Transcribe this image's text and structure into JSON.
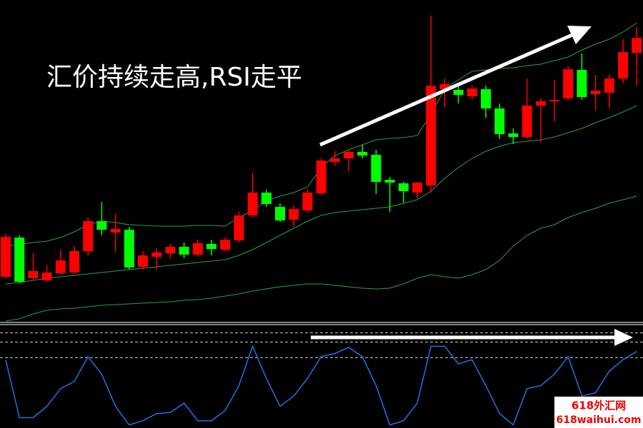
{
  "chart_data": [
    {
      "type": "candlestick",
      "annotation": "汇价持续走高,RSI走平",
      "ylim": [
        10,
        460
      ],
      "up_color": "#ff0000",
      "down_color": "#00ff00",
      "open": [
        72,
        127,
        70,
        67,
        77,
        78,
        108,
        150,
        134,
        138,
        86,
        100,
        105,
        114,
        103,
        118,
        110,
        123,
        158,
        190,
        170,
        152,
        165,
        189,
        233,
        238,
        247,
        243,
        208,
        203,
        190,
        200,
        335,
        334,
        325,
        335,
        308,
        273,
        268,
        312,
        318,
        322,
        362,
        328,
        330,
        350,
        386
      ],
      "close": [
        128,
        65,
        80,
        78,
        95,
        108,
        150,
        138,
        139,
        85,
        102,
        106,
        114,
        103,
        119,
        111,
        124,
        158,
        190,
        174,
        151,
        167,
        190,
        235,
        238,
        247,
        242,
        205,
        204,
        192,
        204,
        340,
        342,
        327,
        336,
        308,
        272,
        268,
        312,
        318,
        320,
        363,
        324,
        333,
        350,
        387,
        407
      ],
      "high": [
        132,
        130,
        105,
        88,
        110,
        115,
        155,
        177,
        160,
        142,
        108,
        112,
        118,
        120,
        124,
        124,
        127,
        164,
        218,
        194,
        175,
        172,
        195,
        238,
        248,
        250,
        257,
        250,
        212,
        205,
        205,
        438,
        350,
        340,
        340,
        340,
        315,
        280,
        350,
        322,
        348,
        367,
        385,
        355,
        355,
        405,
        422
      ],
      "low": [
        70,
        63,
        68,
        65,
        75,
        76,
        102,
        130,
        107,
        82,
        82,
        82,
        98,
        98,
        100,
        102,
        107,
        120,
        155,
        170,
        149,
        142,
        162,
        187,
        228,
        220,
        238,
        188,
        163,
        176,
        182,
        190,
        310,
        315,
        320,
        295,
        265,
        258,
        265,
        260,
        290,
        320,
        320,
        305,
        308,
        343,
        340
      ],
      "band_color": "#2f9e4a",
      "bands": [
        {
          "values": [
            115,
            117,
            120,
            122,
            127,
            135,
            145,
            150,
            148,
            145,
            144,
            143,
            143,
            143,
            144,
            144,
            143,
            155,
            165,
            178,
            185,
            190,
            198,
            225,
            242,
            250,
            257,
            264,
            266,
            267,
            270,
            300,
            335,
            348,
            360,
            362,
            364,
            365,
            368,
            370,
            375,
            380,
            390,
            398,
            405,
            415,
            428
          ]
        },
        {
          "values": [
            62,
            64,
            67,
            70,
            72,
            74,
            76,
            78,
            80,
            82,
            84,
            86,
            88,
            90,
            92,
            94,
            96,
            102,
            110,
            120,
            130,
            140,
            150,
            158,
            162,
            164,
            166,
            168,
            170,
            175,
            180,
            192,
            210,
            225,
            238,
            248,
            255,
            260,
            262,
            264,
            268,
            274,
            280,
            288,
            295,
            303,
            312
          ]
        },
        {
          "values": [
            10,
            13,
            20,
            25,
            27,
            28,
            30,
            32,
            33,
            34,
            35,
            36,
            37,
            39,
            40,
            42,
            45,
            48,
            52,
            55,
            58,
            60,
            62,
            62,
            60,
            58,
            56,
            55,
            56,
            62,
            70,
            75,
            72,
            70,
            75,
            82,
            95,
            115,
            130,
            140,
            145,
            155,
            162,
            168,
            175,
            180,
            185
          ]
        }
      ]
    },
    {
      "type": "line",
      "color": "#1e73e8",
      "ylim": [
        0,
        100
      ],
      "levels": [
        92,
        83,
        68
      ],
      "values": [
        66,
        10,
        10,
        21,
        38,
        45,
        69,
        52,
        21,
        3,
        7,
        14,
        15,
        24,
        7,
        7,
        17,
        41,
        79,
        48,
        21,
        31,
        48,
        69,
        72,
        78,
        69,
        41,
        3,
        7,
        24,
        79,
        79,
        62,
        66,
        41,
        14,
        3,
        38,
        41,
        52,
        69,
        31,
        34,
        55,
        66,
        74
      ]
    }
  ],
  "watermark": {
    "name": "618外汇网",
    "url": "618waihui.com"
  }
}
